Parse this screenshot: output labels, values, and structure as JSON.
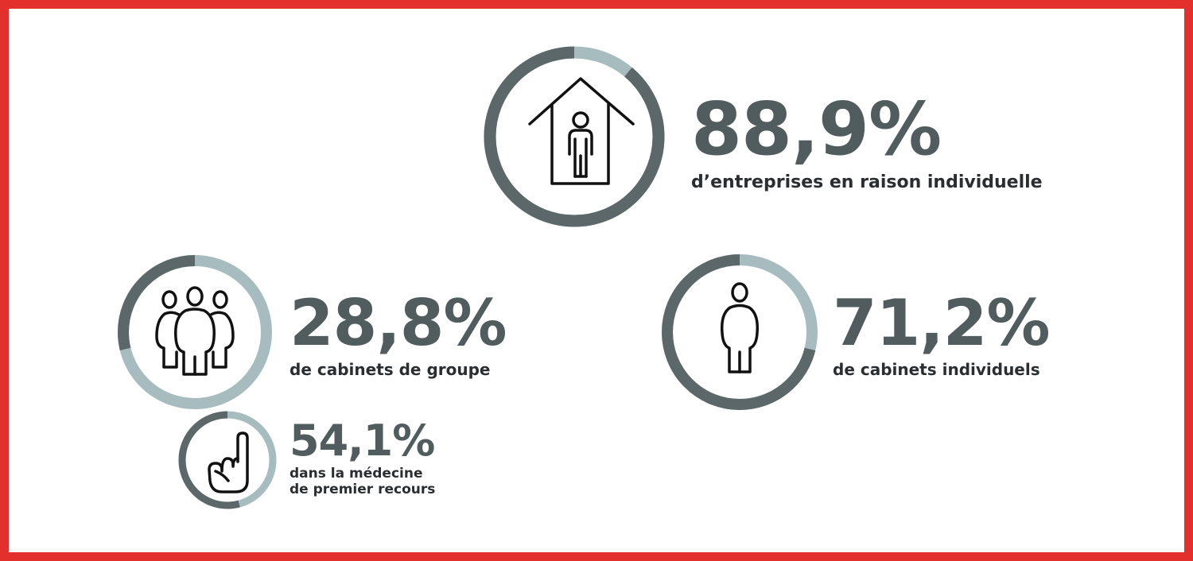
{
  "colors": {
    "border": "#e4302c",
    "ring_dark": "#5b6768",
    "ring_light": "#a6bcbf",
    "value_text": "#505c5d",
    "label_text": "#2a2e30",
    "icon_stroke": "#111111"
  },
  "chart_data": [
    {
      "type": "pie",
      "style": "donut-ring",
      "value": 88.9,
      "value_label": "88,9%",
      "label": "d’entreprises en raison individuelle",
      "icon": "person-in-house-icon"
    },
    {
      "type": "pie",
      "style": "donut-ring",
      "value": 28.8,
      "value_label": "28,8%",
      "label": "de cabinets de groupe",
      "icon": "group-of-people-icon"
    },
    {
      "type": "pie",
      "style": "donut-ring",
      "value": 71.2,
      "value_label": "71,2%",
      "label": "de cabinets individuels",
      "icon": "single-person-icon"
    },
    {
      "type": "pie",
      "style": "donut-ring",
      "value": 54.1,
      "value_label": "54,1%",
      "label_lines": [
        "dans la médecine",
        "de premier recours"
      ],
      "icon": "pointing-hand-icon"
    }
  ]
}
